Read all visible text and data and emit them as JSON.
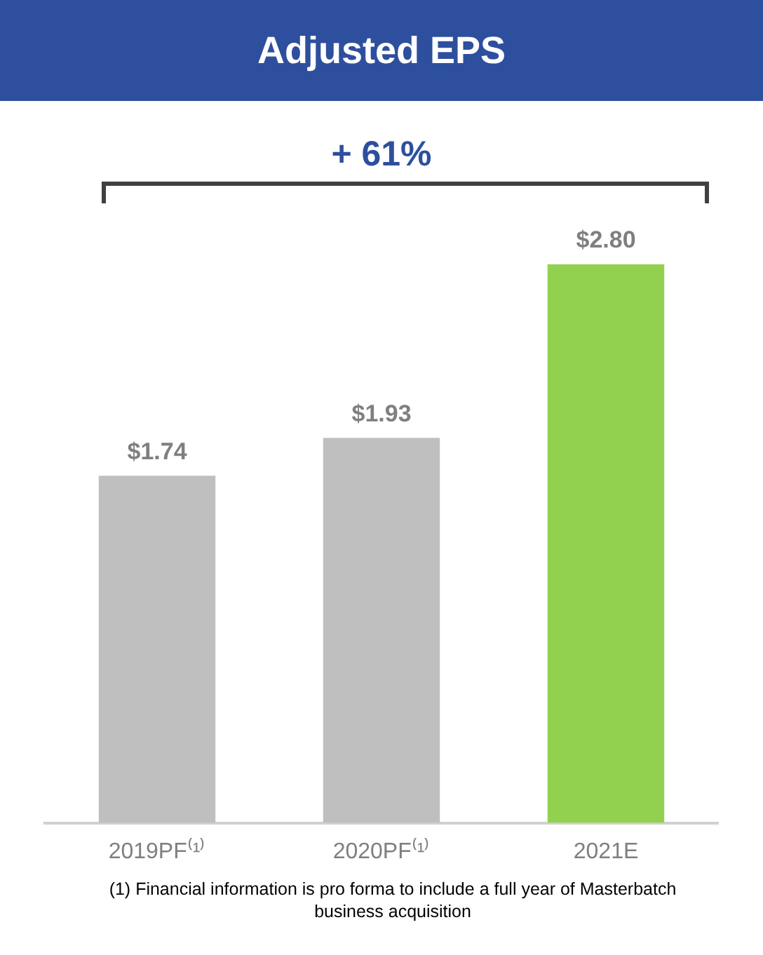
{
  "chart_data": {
    "type": "bar",
    "title": "Adjusted EPS",
    "categories": [
      "2019PF⁽¹⁾",
      "2020PF⁽¹⁾",
      "2021E"
    ],
    "values": [
      1.74,
      1.93,
      2.8
    ],
    "colors": [
      "#bfbfbf",
      "#bfbfbf",
      "#92d050"
    ],
    "value_labels": [
      "$1.74",
      "$1.93",
      "$2.80"
    ],
    "annotations": [
      "+ 61%",
      "(1) Financial information is pro forma to include a full year of Masterbatch business acquisition"
    ]
  }
}
